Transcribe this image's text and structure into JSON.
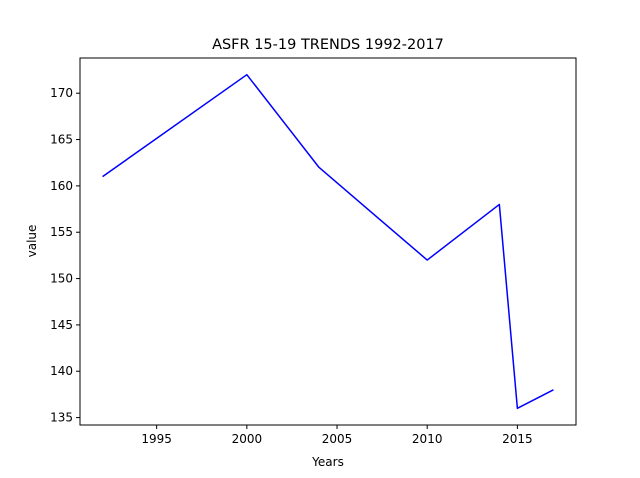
{
  "chart_data": {
    "type": "line",
    "title": "ASFR 15-19 TRENDS 1992-2017",
    "xlabel": "Years",
    "ylabel": "value",
    "x": [
      1992,
      2000,
      2004,
      2010,
      2014,
      2015,
      2017
    ],
    "series": [
      {
        "values": [
          161,
          172,
          162,
          152,
          158,
          136,
          138
        ],
        "color": "#0000ff"
      }
    ],
    "xlim": [
      1990.75,
      2018.25
    ],
    "ylim": [
      134.2,
      173.8
    ],
    "xticks": [
      1995,
      2000,
      2005,
      2010,
      2015
    ],
    "yticks": [
      135,
      140,
      145,
      150,
      155,
      160,
      165,
      170
    ],
    "grid": false,
    "legend": false
  }
}
